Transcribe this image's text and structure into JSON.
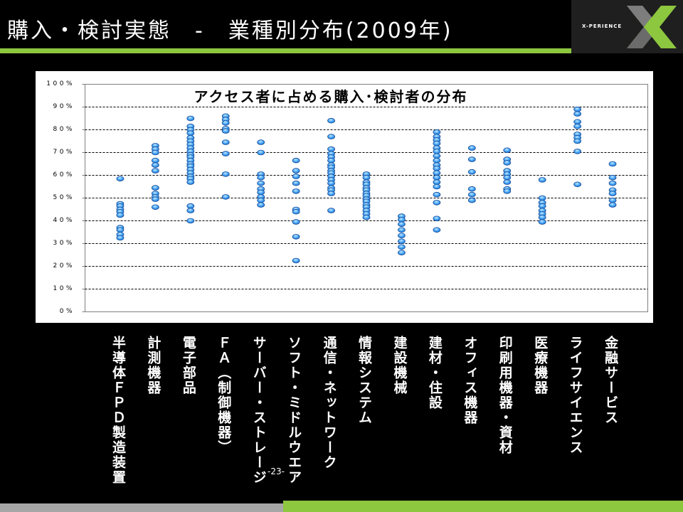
{
  "header": {
    "title": "購入・検討実態　-　業種別分布(2009年)"
  },
  "logo": {
    "text": "X-PERIENCE",
    "icon": "x-logo-icon"
  },
  "footer": {
    "page_number": "-23-"
  },
  "colors": {
    "background": "#000000",
    "accent_green": "#8dc63f",
    "footer_gray": "#a6a6a6",
    "logo_bg": "#1f1f1f",
    "marker": "#3d9cf0",
    "marker_stroke": "#1b4f9a",
    "gridline": "#000000"
  },
  "chart_data": {
    "type": "scatter",
    "title": "アクセス者に占める購入･検討者の分布",
    "ylim": [
      0,
      100
    ],
    "yticks": [
      "0%",
      "10%",
      "20%",
      "30%",
      "40%",
      "50%",
      "60%",
      "70%",
      "80%",
      "90%",
      "100%"
    ],
    "grid": true,
    "categories": [
      "半導体ＦＰＤ製造装置",
      "計測機器",
      "電子部品",
      "ＦＡ（制御機器）",
      "サーバー・ストレージ",
      "ソフト・ミドルウエア",
      "通信・ネットワーク",
      "情報システム",
      "建設機械",
      "建材・住設",
      "オフィス機器",
      "印刷用機器・資材",
      "医療機器",
      "ライフサイエンス",
      "金融サービス"
    ],
    "values": [
      [
        58.5,
        47.5,
        46.5,
        45,
        44,
        42.5,
        37,
        36,
        34,
        32.5
      ],
      [
        73,
        71.5,
        70,
        66.5,
        64.5,
        62,
        54.5,
        52,
        50.5,
        49.5,
        46
      ],
      [
        85,
        81.5,
        80,
        78.5,
        76.5,
        75,
        73.5,
        72,
        70.5,
        69,
        68,
        66.5,
        65,
        64,
        62.5,
        61,
        59.5,
        58.5,
        57,
        46.5,
        44.5,
        40
      ],
      [
        86,
        84.5,
        83,
        80.5,
        79.5,
        74.5,
        69.5,
        60.5,
        50.5
      ],
      [
        74.5,
        70,
        60.5,
        59,
        56.5,
        54,
        52.5,
        50.5,
        49,
        47
      ],
      [
        66.5,
        62,
        59.5,
        56.5,
        53,
        45,
        44,
        39.5,
        33,
        22.5
      ],
      [
        84,
        77,
        71.5,
        69.5,
        68,
        66.5,
        64.5,
        63.5,
        62,
        61,
        59.5,
        58,
        56.5,
        54.5,
        53.5,
        52,
        44.5
      ],
      [
        60.5,
        59,
        57,
        56,
        54.5,
        53.5,
        52,
        51,
        49.5,
        48.5,
        47,
        46,
        44.5,
        43,
        41.5
      ],
      [
        42,
        40.5,
        38.5,
        36,
        33.5,
        31,
        28.5,
        26
      ],
      [
        79,
        77,
        75.5,
        74,
        72,
        70.5,
        68.5,
        66.5,
        64.5,
        63,
        61,
        59,
        57,
        55,
        51.5,
        48,
        41,
        36
      ],
      [
        72,
        67,
        61.5,
        54,
        51.5,
        49
      ],
      [
        71,
        67,
        65.5,
        62,
        60.5,
        59,
        57,
        54,
        53
      ],
      [
        58,
        50,
        48,
        46.5,
        44.5,
        43,
        41.5,
        39.5
      ],
      [
        89,
        87,
        83.5,
        81.5,
        78,
        76.5,
        75,
        70.5,
        56
      ],
      [
        65,
        59,
        56.5,
        53.5,
        52,
        49,
        47
      ]
    ]
  }
}
